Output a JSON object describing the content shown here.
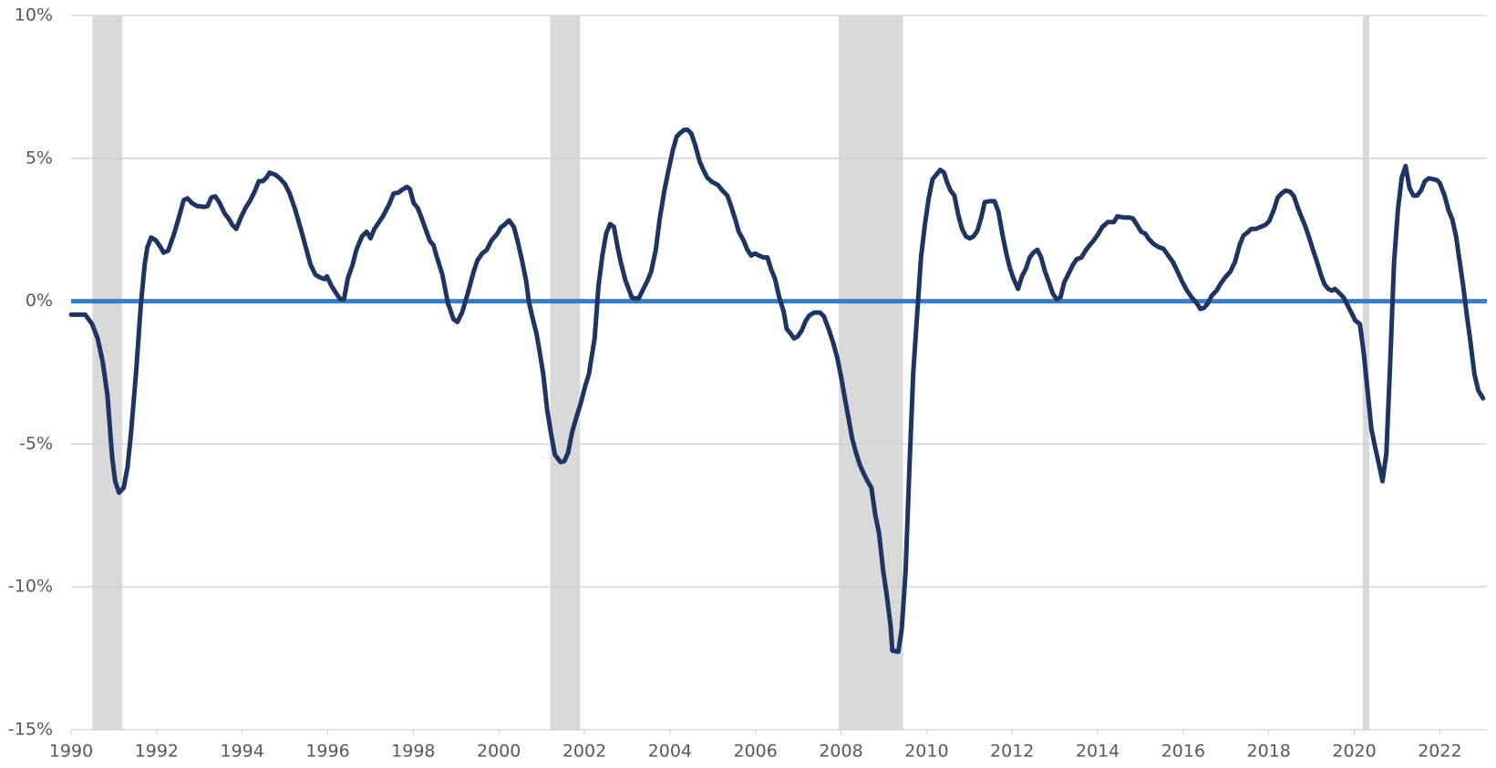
{
  "chart_data": {
    "type": "line",
    "color": "#1f3561",
    "grid": true,
    "grid_color": "#d0d0d0",
    "hline": {
      "value": 0,
      "color": "#3a7dc4"
    },
    "shaded_regions": [
      [
        1990.5,
        1991.2
      ],
      [
        2001.2,
        2001.9
      ],
      [
        2007.95,
        2009.45
      ],
      [
        2020.2,
        2020.35
      ]
    ],
    "shade_color": "#d9d9d9",
    "xlim": [
      1990,
      2023.1
    ],
    "xticks": [
      1990,
      1992,
      1994,
      1996,
      1998,
      2000,
      2002,
      2004,
      2006,
      2008,
      2010,
      2012,
      2014,
      2016,
      2018,
      2020,
      2022
    ],
    "ylim": [
      -15,
      10
    ],
    "yticks": [
      {
        "value": -15,
        "label": "-15%"
      },
      {
        "value": -10,
        "label": "-10%"
      },
      {
        "value": -5,
        "label": "-5%"
      },
      {
        "value": 0,
        "label": "0%"
      },
      {
        "value": 5,
        "label": "5%"
      },
      {
        "value": 10,
        "label": "10%"
      }
    ],
    "x": [
      1990.0,
      1990.33,
      1990.49,
      1990.62,
      1990.74,
      1990.85,
      1990.96,
      1991.03,
      1991.12,
      1991.23,
      1991.32,
      1991.4,
      1991.52,
      1991.63,
      1991.72,
      1991.78,
      1991.87,
      1991.98,
      1992.1,
      1992.16,
      1992.27,
      1992.41,
      1992.52,
      1992.63,
      1992.72,
      1992.83,
      1992.94,
      1993.12,
      1993.19,
      1993.28,
      1993.37,
      1993.46,
      1993.59,
      1993.68,
      1993.77,
      1993.86,
      1993.97,
      1994.08,
      1994.19,
      1994.3,
      1994.39,
      1994.48,
      1994.57,
      1994.64,
      1994.77,
      1994.88,
      1995.0,
      1995.11,
      1995.24,
      1995.37,
      1995.49,
      1995.6,
      1995.71,
      1995.82,
      1995.93,
      1995.98,
      1996.09,
      1996.2,
      1996.29,
      1996.38,
      1996.47,
      1996.58,
      1996.67,
      1996.8,
      1996.91,
      1997.0,
      1997.09,
      1997.2,
      1997.29,
      1997.43,
      1997.54,
      1997.65,
      1997.74,
      1997.85,
      1997.92,
      1998.01,
      1998.1,
      1998.18,
      1998.3,
      1998.39,
      1998.47,
      1998.56,
      1998.68,
      1998.81,
      1998.94,
      1999.03,
      1999.14,
      1999.26,
      1999.32,
      1999.41,
      1999.5,
      1999.61,
      1999.72,
      1999.83,
      1999.97,
      2000.04,
      2000.15,
      2000.24,
      2000.35,
      2000.44,
      2000.55,
      2000.64,
      2000.7,
      2000.77,
      2000.88,
      2000.95,
      2001.04,
      2001.13,
      2001.22,
      2001.31,
      2001.44,
      2001.53,
      2001.62,
      2001.71,
      2001.82,
      2001.91,
      2002.02,
      2002.11,
      2002.15,
      2002.24,
      2002.33,
      2002.42,
      2002.51,
      2002.6,
      2002.69,
      2002.78,
      2002.85,
      2002.96,
      2003.05,
      2003.11,
      2003.18,
      2003.27,
      2003.36,
      2003.47,
      2003.56,
      2003.67,
      2003.76,
      2003.87,
      2003.96,
      2004.07,
      2004.16,
      2004.25,
      2004.34,
      2004.41,
      2004.5,
      2004.59,
      2004.7,
      2004.79,
      2004.87,
      2004.99,
      2005.12,
      2005.23,
      2005.34,
      2005.43,
      2005.54,
      2005.61,
      2005.72,
      2005.81,
      2005.9,
      2005.99,
      2006.08,
      2006.19,
      2006.28,
      2006.37,
      2006.46,
      2006.55,
      2006.66,
      2006.73,
      2006.82,
      2006.9,
      2006.99,
      2007.08,
      2007.17,
      2007.26,
      2007.37,
      2007.51,
      2007.6,
      2007.71,
      2007.82,
      2007.91,
      2008.0,
      2008.09,
      2008.18,
      2008.26,
      2008.35,
      2008.44,
      2008.53,
      2008.62,
      2008.71,
      2008.8,
      2008.89,
      2008.98,
      2009.07,
      2009.16,
      2009.2,
      2009.34,
      2009.42,
      2009.51,
      2009.6,
      2009.69,
      2009.78,
      2009.87,
      2009.96,
      2010.05,
      2010.14,
      2010.23,
      2010.32,
      2010.41,
      2010.47,
      2010.56,
      2010.65,
      2010.74,
      2010.83,
      2010.92,
      2011.01,
      2011.1,
      2011.19,
      2011.28,
      2011.36,
      2011.48,
      2011.59,
      2011.68,
      2011.77,
      2011.86,
      2011.94,
      2012.03,
      2012.14,
      2012.23,
      2012.32,
      2012.41,
      2012.5,
      2012.59,
      2012.68,
      2012.77,
      2012.86,
      2012.95,
      2013.04,
      2013.13,
      2013.22,
      2013.31,
      2013.42,
      2013.51,
      2013.62,
      2013.73,
      2013.82,
      2013.91,
      2014.02,
      2014.11,
      2014.24,
      2014.38,
      2014.46,
      2014.6,
      2014.73,
      2014.82,
      2014.91,
      2015.02,
      2015.11,
      2015.2,
      2015.31,
      2015.42,
      2015.54,
      2015.65,
      2015.76,
      2015.87,
      2015.98,
      2016.09,
      2016.2,
      2016.32,
      2016.4,
      2016.49,
      2016.58,
      2016.67,
      2016.78,
      2016.87,
      2016.98,
      2017.1,
      2017.21,
      2017.32,
      2017.41,
      2017.5,
      2017.59,
      2017.7,
      2017.81,
      2017.92,
      2018.01,
      2018.12,
      2018.21,
      2018.3,
      2018.39,
      2018.5,
      2018.59,
      2018.68,
      2018.77,
      2018.86,
      2018.95,
      2019.04,
      2019.13,
      2019.22,
      2019.3,
      2019.39,
      2019.48,
      2019.55,
      2019.64,
      2019.75,
      2019.84,
      2019.93,
      2020.02,
      2020.13,
      2020.22,
      2020.31,
      2020.4,
      2020.49,
      2020.58,
      2020.66,
      2020.75,
      2020.84,
      2020.93,
      2021.02,
      2021.11,
      2021.2,
      2021.29,
      2021.38,
      2021.47,
      2021.56,
      2021.65,
      2021.74,
      2021.85,
      2021.94,
      2022.0,
      2022.11,
      2022.2,
      2022.29,
      2022.38,
      2022.45,
      2022.54,
      2022.63,
      2022.72,
      2022.81,
      2022.9,
      2023.01
    ],
    "values": [
      -0.47,
      -0.47,
      -0.8,
      -1.3,
      -2.13,
      -3.3,
      -5.47,
      -6.3,
      -6.7,
      -6.53,
      -5.8,
      -4.63,
      -2.47,
      -0.13,
      1.27,
      1.87,
      2.23,
      2.13,
      1.87,
      1.7,
      1.77,
      2.37,
      2.93,
      3.53,
      3.6,
      3.43,
      3.33,
      3.3,
      3.33,
      3.63,
      3.67,
      3.47,
      3.07,
      2.9,
      2.67,
      2.53,
      2.93,
      3.27,
      3.53,
      3.87,
      4.2,
      4.2,
      4.33,
      4.5,
      4.43,
      4.3,
      4.1,
      3.77,
      3.2,
      2.53,
      1.87,
      1.27,
      0.93,
      0.83,
      0.77,
      0.87,
      0.53,
      0.27,
      0.07,
      0.07,
      0.8,
      1.27,
      1.8,
      2.27,
      2.43,
      2.2,
      2.53,
      2.77,
      2.97,
      3.37,
      3.77,
      3.8,
      3.9,
      4.0,
      3.93,
      3.43,
      3.27,
      2.97,
      2.47,
      2.1,
      1.97,
      1.5,
      0.93,
      -0.07,
      -0.63,
      -0.73,
      -0.4,
      0.2,
      0.53,
      1.03,
      1.43,
      1.67,
      1.8,
      2.13,
      2.37,
      2.57,
      2.7,
      2.83,
      2.6,
      2.1,
      1.37,
      0.7,
      0.0,
      -0.47,
      -1.13,
      -1.73,
      -2.57,
      -3.8,
      -4.63,
      -5.37,
      -5.63,
      -5.6,
      -5.3,
      -4.6,
      -4.03,
      -3.6,
      -2.97,
      -2.53,
      -2.13,
      -1.3,
      0.53,
      1.6,
      2.37,
      2.7,
      2.6,
      1.87,
      1.37,
      0.73,
      0.37,
      0.13,
      0.1,
      0.1,
      0.37,
      0.7,
      1.03,
      1.8,
      2.87,
      3.87,
      4.53,
      5.3,
      5.77,
      5.9,
      6.0,
      6.0,
      5.87,
      5.47,
      4.87,
      4.57,
      4.33,
      4.17,
      4.07,
      3.87,
      3.7,
      3.33,
      2.8,
      2.43,
      2.13,
      1.8,
      1.6,
      1.67,
      1.6,
      1.53,
      1.53,
      1.1,
      0.77,
      0.17,
      -0.37,
      -0.97,
      -1.13,
      -1.3,
      -1.23,
      -1.03,
      -0.7,
      -0.5,
      -0.4,
      -0.4,
      -0.53,
      -0.97,
      -1.47,
      -1.97,
      -2.63,
      -3.4,
      -4.13,
      -4.8,
      -5.3,
      -5.73,
      -6.03,
      -6.3,
      -6.53,
      -7.47,
      -8.13,
      -9.37,
      -10.3,
      -11.37,
      -12.23,
      -12.27,
      -11.47,
      -9.47,
      -5.8,
      -2.47,
      -0.47,
      1.53,
      2.67,
      3.6,
      4.27,
      4.43,
      4.6,
      4.5,
      4.2,
      3.87,
      3.7,
      3.03,
      2.53,
      2.27,
      2.2,
      2.27,
      2.47,
      2.93,
      3.47,
      3.5,
      3.5,
      3.13,
      2.37,
      1.7,
      1.2,
      0.8,
      0.43,
      0.87,
      1.13,
      1.53,
      1.7,
      1.8,
      1.53,
      1.03,
      0.67,
      0.27,
      0.07,
      0.13,
      0.67,
      0.93,
      1.27,
      1.47,
      1.53,
      1.8,
      1.97,
      2.13,
      2.37,
      2.6,
      2.77,
      2.77,
      2.97,
      2.93,
      2.93,
      2.9,
      2.7,
      2.43,
      2.37,
      2.17,
      2.0,
      1.9,
      1.83,
      1.6,
      1.37,
      1.03,
      0.67,
      0.37,
      0.13,
      -0.07,
      -0.27,
      -0.23,
      -0.07,
      0.2,
      0.37,
      0.6,
      0.83,
      1.03,
      1.37,
      1.97,
      2.3,
      2.4,
      2.53,
      2.53,
      2.6,
      2.67,
      2.8,
      3.2,
      3.63,
      3.77,
      3.87,
      3.83,
      3.67,
      3.27,
      2.93,
      2.6,
      2.2,
      1.77,
      1.37,
      0.93,
      0.6,
      0.43,
      0.37,
      0.43,
      0.3,
      0.13,
      -0.13,
      -0.4,
      -0.67,
      -0.8,
      -1.8,
      -3.13,
      -4.47,
      -5.13,
      -5.73,
      -6.3,
      -5.33,
      -2.13,
      1.37,
      3.2,
      4.33,
      4.73,
      3.97,
      3.7,
      3.7,
      3.87,
      4.2,
      4.3,
      4.27,
      4.23,
      4.13,
      3.7,
      3.2,
      2.87,
      2.27,
      1.53,
      0.6,
      -0.47,
      -1.47,
      -2.57,
      -3.13,
      -3.4
    ]
  }
}
